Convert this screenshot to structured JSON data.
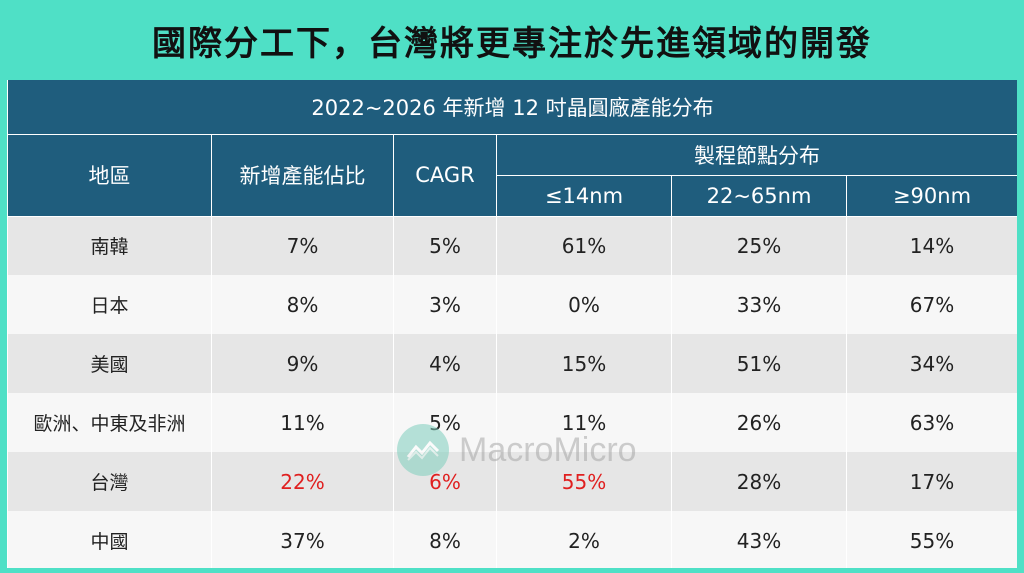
{
  "headline": "國際分工下，台灣將更專注於先進領域的開發",
  "table": {
    "caption": "2022~2026 年新增 12 吋晶圓廠產能分布",
    "headers": {
      "region": "地區",
      "share": "新增產能佔比",
      "cagr": "CAGR",
      "process_group": "製程節點分布",
      "nodes": [
        "≤14nm",
        "22~65nm",
        "≥90nm"
      ]
    },
    "rows": [
      {
        "region": "南韓",
        "share": "7%",
        "cagr": "5%",
        "n14": "61%",
        "n22_65": "25%",
        "n90": "14%"
      },
      {
        "region": "日本",
        "share": "8%",
        "cagr": "3%",
        "n14": "0%",
        "n22_65": "33%",
        "n90": "67%"
      },
      {
        "region": "美國",
        "share": "9%",
        "cagr": "4%",
        "n14": "15%",
        "n22_65": "51%",
        "n90": "34%"
      },
      {
        "region": "歐洲、中東及非洲",
        "share": "11%",
        "cagr": "5%",
        "n14": "11%",
        "n22_65": "26%",
        "n90": "63%"
      },
      {
        "region": "台灣",
        "share": "22%",
        "cagr": "6%",
        "n14": "55%",
        "n22_65": "28%",
        "n90": "17%"
      },
      {
        "region": "中國",
        "share": "37%",
        "cagr": "8%",
        "n14": "2%",
        "n22_65": "43%",
        "n90": "55%"
      }
    ]
  },
  "watermark": {
    "text": "MacroMicro",
    "icon": "macromicro-logo-icon"
  },
  "colors": {
    "background": "#4fe0c6",
    "header": "#1f5d7d",
    "highlight": "#e02020"
  }
}
